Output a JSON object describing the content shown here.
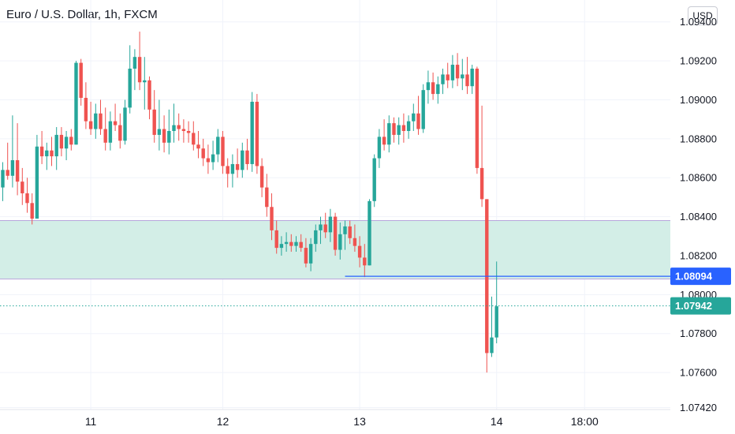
{
  "header": {
    "title": "Euro / U.S. Dollar, 1h, FXCM",
    "currency": "USD"
  },
  "chart_data": {
    "type": "candlestick",
    "title": "Euro / U.S. Dollar, 1h, FXCM",
    "ylim": [
      1.0741,
      1.0948
    ],
    "y_ticks": [
      "1.09400",
      "1.09200",
      "1.09000",
      "1.08800",
      "1.08600",
      "1.08400",
      "1.08200",
      "1.08000",
      "1.07800",
      "1.07600",
      "1.07420"
    ],
    "x_ticks": [
      {
        "label": "11",
        "bar": 18
      },
      {
        "label": "12",
        "bar": 45
      },
      {
        "label": "13",
        "bar": 73
      },
      {
        "label": "14",
        "bar": 101
      },
      {
        "label": "18:00",
        "bar": 119
      }
    ],
    "zone": {
      "top": 1.0838,
      "bottom": 1.0808,
      "fill": "#d3eee7",
      "border": "#b8a6dc"
    },
    "support_line": {
      "value": 1.08094,
      "label": "1.08094",
      "from_bar": 70,
      "color": "#2962ff"
    },
    "last_price": {
      "value": 1.07942,
      "label": "1.07942",
      "color": "#26a69a"
    },
    "colors": {
      "up": "#26a69a",
      "down": "#ef5350"
    },
    "candles": [
      [
        1.0855,
        1.0868,
        1.0848,
        1.0864
      ],
      [
        1.0864,
        1.0878,
        1.0859,
        1.0861
      ],
      [
        1.0861,
        1.0892,
        1.0855,
        1.0869
      ],
      [
        1.0869,
        1.0888,
        1.0851,
        1.0858
      ],
      [
        1.0858,
        1.0865,
        1.0846,
        1.0852
      ],
      [
        1.0852,
        1.086,
        1.0842,
        1.0847
      ],
      [
        1.0847,
        1.0852,
        1.0836,
        1.0839
      ],
      [
        1.0839,
        1.0882,
        1.0839,
        1.0876
      ],
      [
        1.0876,
        1.0884,
        1.0867,
        1.0871
      ],
      [
        1.0871,
        1.0878,
        1.0864,
        1.0874
      ],
      [
        1.0874,
        1.0881,
        1.0866,
        1.0871
      ],
      [
        1.0871,
        1.0886,
        1.0864,
        1.0882
      ],
      [
        1.0882,
        1.0886,
        1.0871,
        1.0875
      ],
      [
        1.0875,
        1.0884,
        1.0869,
        1.0881
      ],
      [
        1.0881,
        1.0885,
        1.0874,
        1.0877
      ],
      [
        1.0877,
        1.092,
        1.0877,
        1.0919
      ],
      [
        1.0919,
        1.0921,
        1.0897,
        1.0901
      ],
      [
        1.0901,
        1.0909,
        1.0885,
        1.0889
      ],
      [
        1.0889,
        1.0899,
        1.0882,
        1.0885
      ],
      [
        1.0885,
        1.0898,
        1.088,
        1.0893
      ],
      [
        1.0893,
        1.09,
        1.0882,
        1.0885
      ],
      [
        1.0885,
        1.0896,
        1.0874,
        1.0878
      ],
      [
        1.0878,
        1.0894,
        1.0874,
        1.0889
      ],
      [
        1.0889,
        1.0898,
        1.0884,
        1.0887
      ],
      [
        1.0887,
        1.0893,
        1.0875,
        1.0879
      ],
      [
        1.0879,
        1.09,
        1.0877,
        1.0896
      ],
      [
        1.0896,
        1.0928,
        1.0893,
        1.0916
      ],
      [
        1.0916,
        1.0926,
        1.0905,
        1.0922
      ],
      [
        1.0922,
        1.0935,
        1.0905,
        1.0909
      ],
      [
        1.0909,
        1.0922,
        1.0895,
        1.091
      ],
      [
        1.091,
        1.0912,
        1.089,
        1.0895
      ],
      [
        1.0895,
        1.0905,
        1.0878,
        1.0882
      ],
      [
        1.0882,
        1.09,
        1.0874,
        1.0885
      ],
      [
        1.0885,
        1.0892,
        1.0873,
        1.0878
      ],
      [
        1.0878,
        1.0895,
        1.0872,
        1.0884
      ],
      [
        1.0884,
        1.0898,
        1.0878,
        1.0887
      ],
      [
        1.0887,
        1.0893,
        1.0879,
        1.0885
      ],
      [
        1.0885,
        1.089,
        1.0878,
        1.0884
      ],
      [
        1.0884,
        1.0889,
        1.0878,
        1.0883
      ],
      [
        1.0883,
        1.0889,
        1.0874,
        1.0877
      ],
      [
        1.0877,
        1.0884,
        1.087,
        1.0875
      ],
      [
        1.0875,
        1.088,
        1.0866,
        1.087
      ],
      [
        1.087,
        1.0877,
        1.0862,
        1.0868
      ],
      [
        1.0868,
        1.0879,
        1.0864,
        1.0872
      ],
      [
        1.0872,
        1.0885,
        1.0868,
        1.0881
      ],
      [
        1.0881,
        1.0884,
        1.0862,
        1.0866
      ],
      [
        1.0866,
        1.087,
        1.0855,
        1.0862
      ],
      [
        1.0862,
        1.0872,
        1.0855,
        1.0867
      ],
      [
        1.0867,
        1.0875,
        1.086,
        1.0864
      ],
      [
        1.0864,
        1.0878,
        1.086,
        1.0874
      ],
      [
        1.0874,
        1.088,
        1.0864,
        1.0867
      ],
      [
        1.0867,
        1.0904,
        1.0863,
        1.0899
      ],
      [
        1.0899,
        1.0903,
        1.0862,
        1.0866
      ],
      [
        1.0866,
        1.087,
        1.085,
        1.0855
      ],
      [
        1.0855,
        1.0862,
        1.084,
        1.0845
      ],
      [
        1.0845,
        1.0852,
        1.0828,
        1.0833
      ],
      [
        1.0833,
        1.0838,
        1.0821,
        1.0824
      ],
      [
        1.0824,
        1.083,
        1.082,
        1.0826
      ],
      [
        1.0826,
        1.0832,
        1.0822,
        1.0827
      ],
      [
        1.0827,
        1.0831,
        1.0822,
        1.0825
      ],
      [
        1.0825,
        1.083,
        1.0822,
        1.0827
      ],
      [
        1.0827,
        1.0831,
        1.0822,
        1.0824
      ],
      [
        1.0824,
        1.0829,
        1.0814,
        1.0816
      ],
      [
        1.0816,
        1.0829,
        1.0812,
        1.0826
      ],
      [
        1.0826,
        1.0836,
        1.0822,
        1.0833
      ],
      [
        1.0833,
        1.084,
        1.0826,
        1.0836
      ],
      [
        1.0836,
        1.0842,
        1.0829,
        1.0832
      ],
      [
        1.0832,
        1.0844,
        1.0827,
        1.084
      ],
      [
        1.084,
        1.0842,
        1.082,
        1.0823
      ],
      [
        1.0823,
        1.0837,
        1.0818,
        1.0831
      ],
      [
        1.0831,
        1.0838,
        1.0823,
        1.0835
      ],
      [
        1.0835,
        1.0838,
        1.0826,
        1.0829
      ],
      [
        1.0829,
        1.0836,
        1.0822,
        1.0825
      ],
      [
        1.0825,
        1.083,
        1.0814,
        1.0819
      ],
      [
        1.0819,
        1.0826,
        1.0809,
        1.0815
      ],
      [
        1.0815,
        1.0849,
        1.0815,
        1.0848
      ],
      [
        1.0848,
        1.0872,
        1.0845,
        1.087
      ],
      [
        1.087,
        1.0885,
        1.0865,
        1.0881
      ],
      [
        1.0881,
        1.089,
        1.0874,
        1.0877
      ],
      [
        1.0877,
        1.0892,
        1.0873,
        1.0888
      ],
      [
        1.0888,
        1.0891,
        1.0878,
        1.0882
      ],
      [
        1.0882,
        1.0891,
        1.0877,
        1.0887
      ],
      [
        1.0887,
        1.0893,
        1.0878,
        1.0884
      ],
      [
        1.0884,
        1.0892,
        1.088,
        1.0889
      ],
      [
        1.0889,
        1.0898,
        1.0884,
        1.0893
      ],
      [
        1.0893,
        1.0902,
        1.0882,
        1.0885
      ],
      [
        1.0885,
        1.0908,
        1.0883,
        1.0905
      ],
      [
        1.0905,
        1.0915,
        1.0898,
        1.0909
      ],
      [
        1.0909,
        1.0914,
        1.09,
        1.0903
      ],
      [
        1.0903,
        1.0912,
        1.0898,
        1.0908
      ],
      [
        1.0908,
        1.0916,
        1.0903,
        1.0913
      ],
      [
        1.0913,
        1.0919,
        1.0906,
        1.091
      ],
      [
        1.091,
        1.0923,
        1.0906,
        1.0918
      ],
      [
        1.0918,
        1.0924,
        1.0907,
        1.0911
      ],
      [
        1.0911,
        1.0921,
        1.0905,
        1.0913
      ],
      [
        1.0913,
        1.0922,
        1.0903,
        1.0907
      ],
      [
        1.0907,
        1.0918,
        1.0903,
        1.0916
      ],
      [
        1.0916,
        1.0917,
        1.0862,
        1.0865
      ],
      [
        1.0865,
        1.0897,
        1.0845,
        1.0849
      ],
      [
        1.0849,
        1.0849,
        1.076,
        1.077
      ],
      [
        1.077,
        1.0799,
        1.0768,
        1.0778
      ],
      [
        1.0778,
        1.0817,
        1.0775,
        1.0794
      ]
    ]
  }
}
